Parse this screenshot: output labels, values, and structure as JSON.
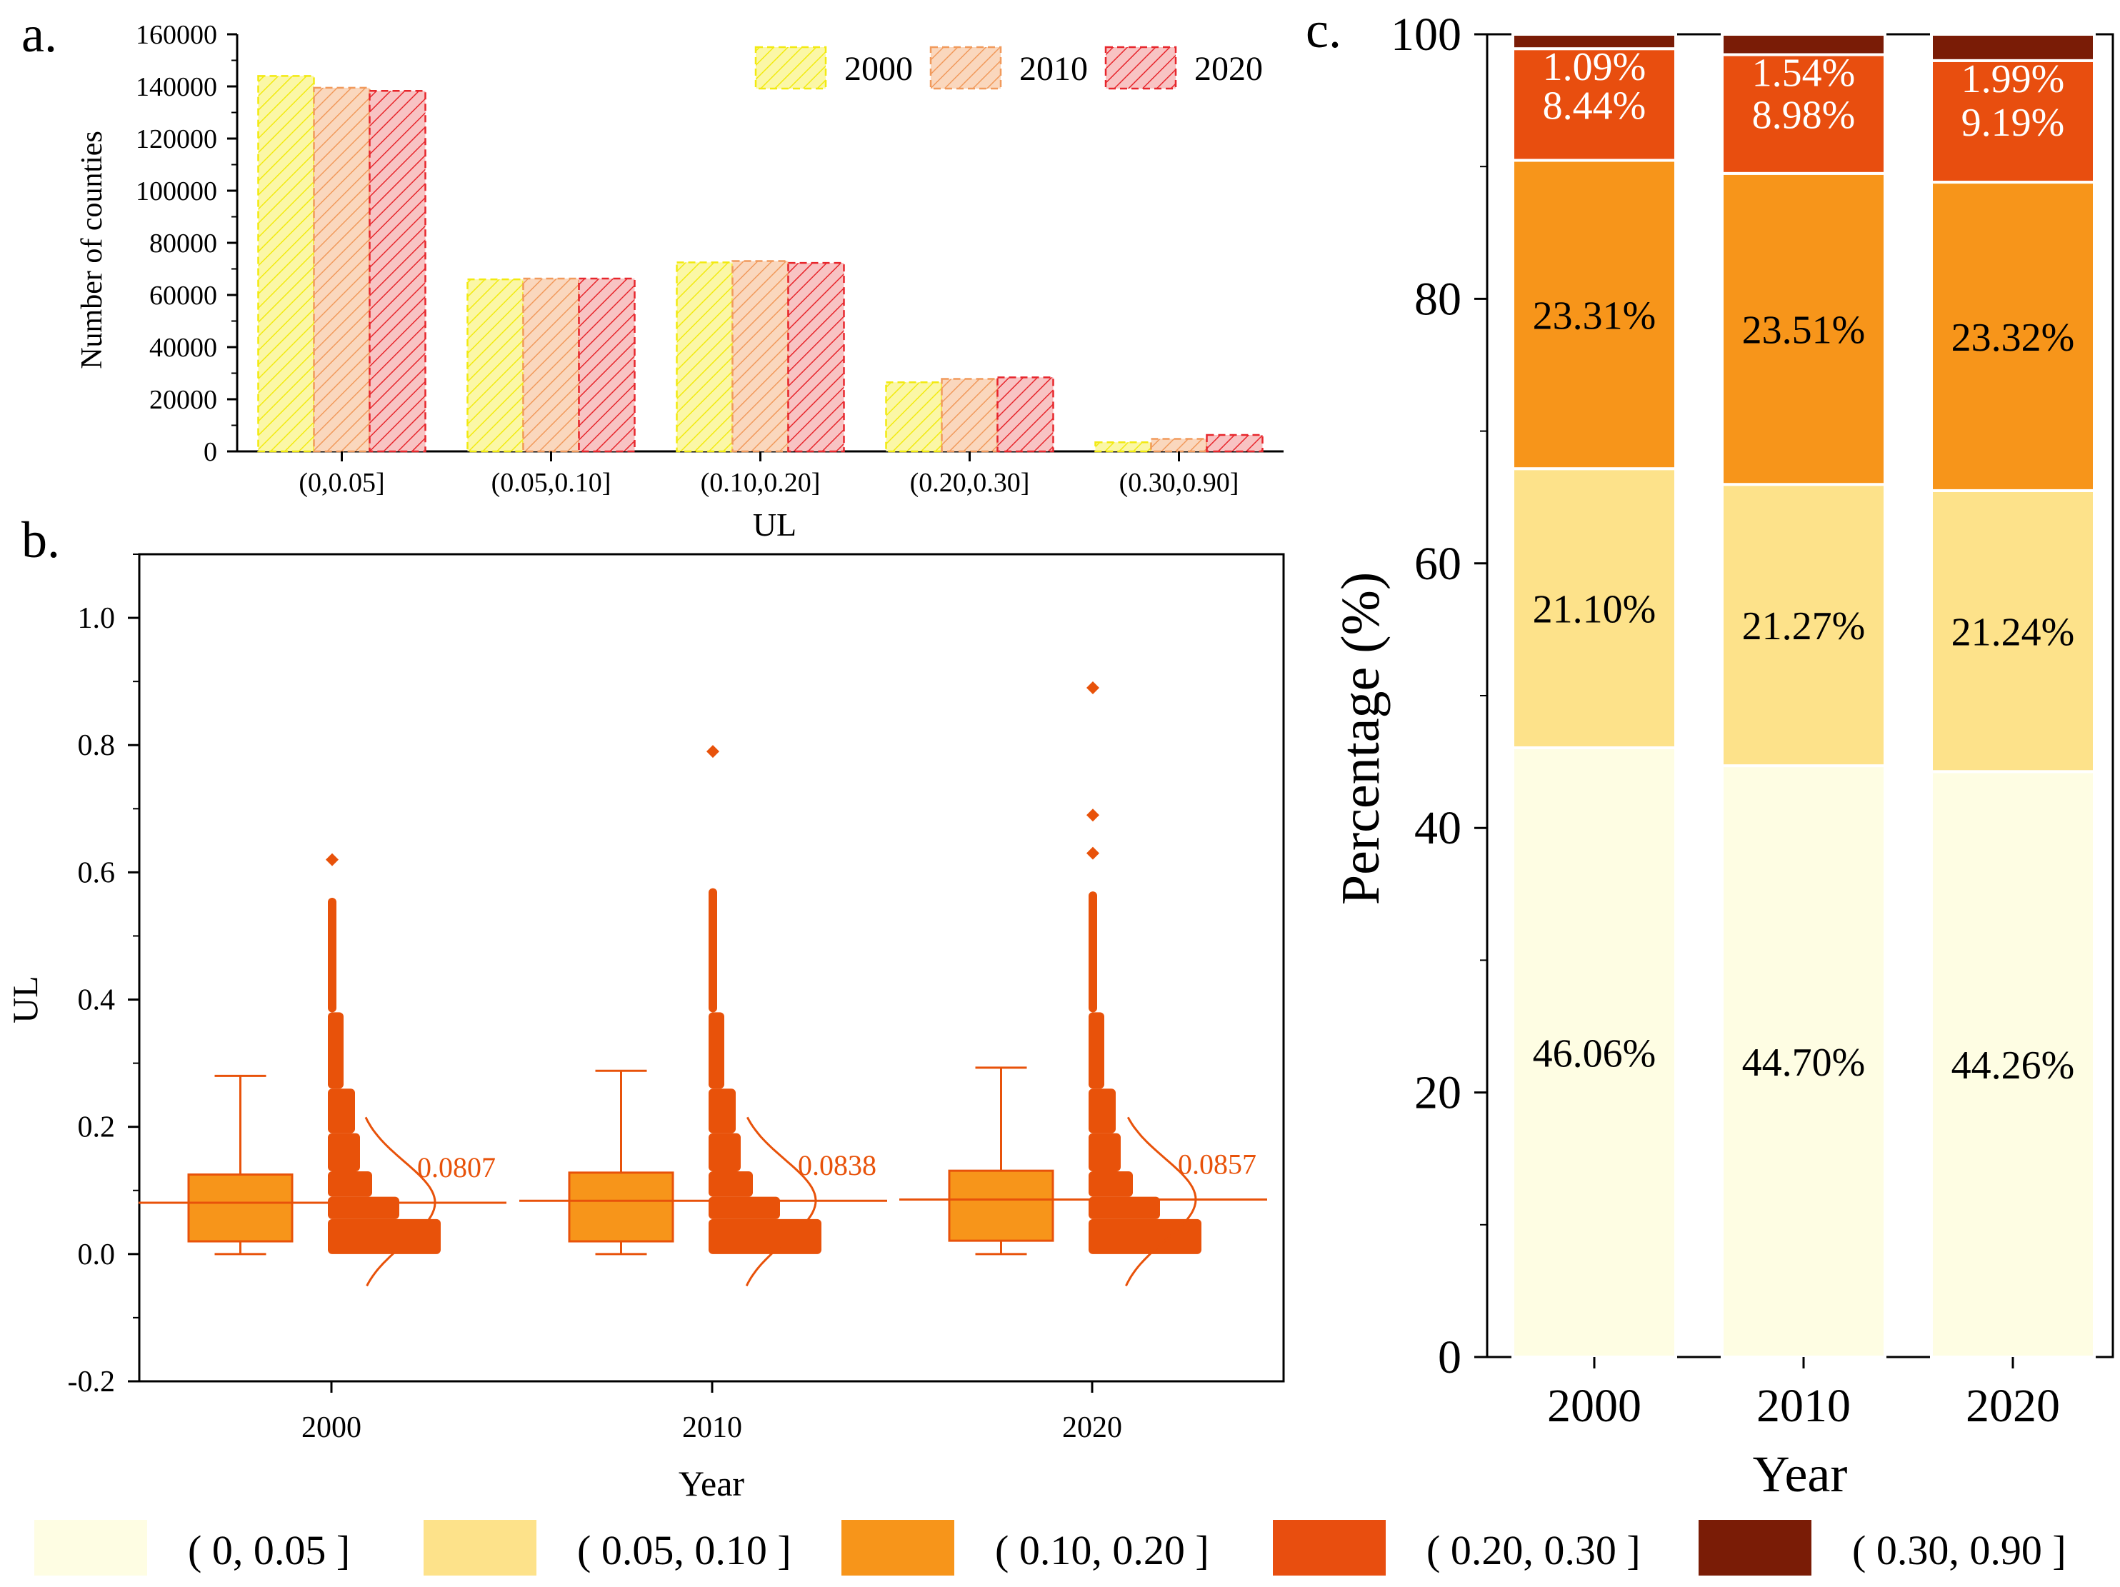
{
  "panel_labels": {
    "a": "a.",
    "b": "b.",
    "c": "c."
  },
  "chart_data": [
    {
      "id": "a",
      "type": "bar",
      "categories": [
        "(0,0.05]",
        "(0.05,0.10]",
        "(0.10,0.20]",
        "(0.20,0.30]",
        "(0.30,0.90]"
      ],
      "series": [
        {
          "name": "2000",
          "values": [
            144000,
            66000,
            72500,
            26500,
            3500
          ],
          "color": "#f2ea10"
        },
        {
          "name": "2010",
          "values": [
            139500,
            66300,
            73000,
            27800,
            4800
          ],
          "color": "#f19a5c"
        },
        {
          "name": "2020",
          "values": [
            138300,
            66300,
            72300,
            28400,
            6300
          ],
          "color": "#e7262c"
        }
      ],
      "xlabel": "UL",
      "ylabel": "Number of counties",
      "ylim": [
        0,
        160000
      ],
      "yticks": [
        "0",
        "20000",
        "40000",
        "60000",
        "80000",
        "100000",
        "120000",
        "140000",
        "160000"
      ],
      "legend_position": "top-right"
    },
    {
      "id": "b",
      "type": "box",
      "categories": [
        "2000",
        "2010",
        "2020"
      ],
      "xlabel": "Year",
      "ylabel": "UL",
      "ylim": [
        -0.2,
        1.1
      ],
      "yticks": [
        "-0.2",
        "0.0",
        "0.2",
        "0.4",
        "0.6",
        "0.8",
        "1.0"
      ],
      "boxes": [
        {
          "year": "2000",
          "whisker_low": 0.0,
          "q1": 0.02,
          "mean": 0.0807,
          "q3": 0.125,
          "whisker_high": 0.28,
          "scatter_max": 0.56,
          "outliers": [
            0.62
          ],
          "mean_label": "0.0807"
        },
        {
          "year": "2010",
          "whisker_low": 0.0,
          "q1": 0.02,
          "mean": 0.0838,
          "q3": 0.128,
          "whisker_high": 0.288,
          "scatter_max": 0.575,
          "outliers": [
            0.79
          ],
          "mean_label": "0.0838"
        },
        {
          "year": "2020",
          "whisker_low": 0.0,
          "q1": 0.021,
          "mean": 0.0857,
          "q3": 0.131,
          "whisker_high": 0.293,
          "scatter_max": 0.57,
          "outliers": [
            0.63,
            0.69,
            0.89
          ],
          "mean_label": "0.0857"
        }
      ],
      "box_color": "#f7951a",
      "scatter_color": "#e8520a"
    },
    {
      "id": "c",
      "type": "bar",
      "stacked": true,
      "categories": [
        "2000",
        "2010",
        "2020"
      ],
      "series": [
        {
          "name": "( 0, 0.05 ]",
          "values": [
            46.06,
            44.7,
            44.26
          ],
          "labels": [
            "46.06%",
            "44.70%",
            "44.26%"
          ],
          "color": "#fefde3",
          "label_color": "#000000"
        },
        {
          "name": "( 0.05, 0.10 ]",
          "values": [
            21.1,
            21.27,
            21.24
          ],
          "labels": [
            "21.10%",
            "21.27%",
            "21.24%"
          ],
          "color": "#fde28a",
          "label_color": "#000000"
        },
        {
          "name": "( 0.10, 0.20 ]",
          "values": [
            23.31,
            23.51,
            23.32
          ],
          "labels": [
            "23.31%",
            "23.51%",
            "23.32%"
          ],
          "color": "#f7951a",
          "label_color": "#000000"
        },
        {
          "name": "( 0.20, 0.30 ]",
          "values": [
            8.44,
            8.98,
            9.19
          ],
          "labels": [
            "8.44%",
            "8.98%",
            "9.19%"
          ],
          "color": "#e84e0f",
          "label_color": "#ffffff"
        },
        {
          "name": "( 0.30, 0.90 ]",
          "values": [
            1.09,
            1.54,
            1.99
          ],
          "labels": [
            "1.09%",
            "1.54%",
            "1.99%"
          ],
          "color": "#7a1c06",
          "label_color": "#ffffff"
        }
      ],
      "xlabel": "Year",
      "ylabel": "Percentage (%)",
      "ylim": [
        0,
        100
      ],
      "yticks": [
        "0",
        "20",
        "40",
        "60",
        "80",
        "100"
      ]
    }
  ],
  "legend_bottom": [
    {
      "label": "( 0, 0.05 ]",
      "color": "#fefde3"
    },
    {
      "label": "( 0.05, 0.10 ]",
      "color": "#fde28a"
    },
    {
      "label": "( 0.10, 0.20 ]",
      "color": "#f7951a"
    },
    {
      "label": "( 0.20, 0.30 ]",
      "color": "#e84e0f"
    },
    {
      "label": "( 0.30, 0.90 ]",
      "color": "#7a1c06"
    }
  ]
}
